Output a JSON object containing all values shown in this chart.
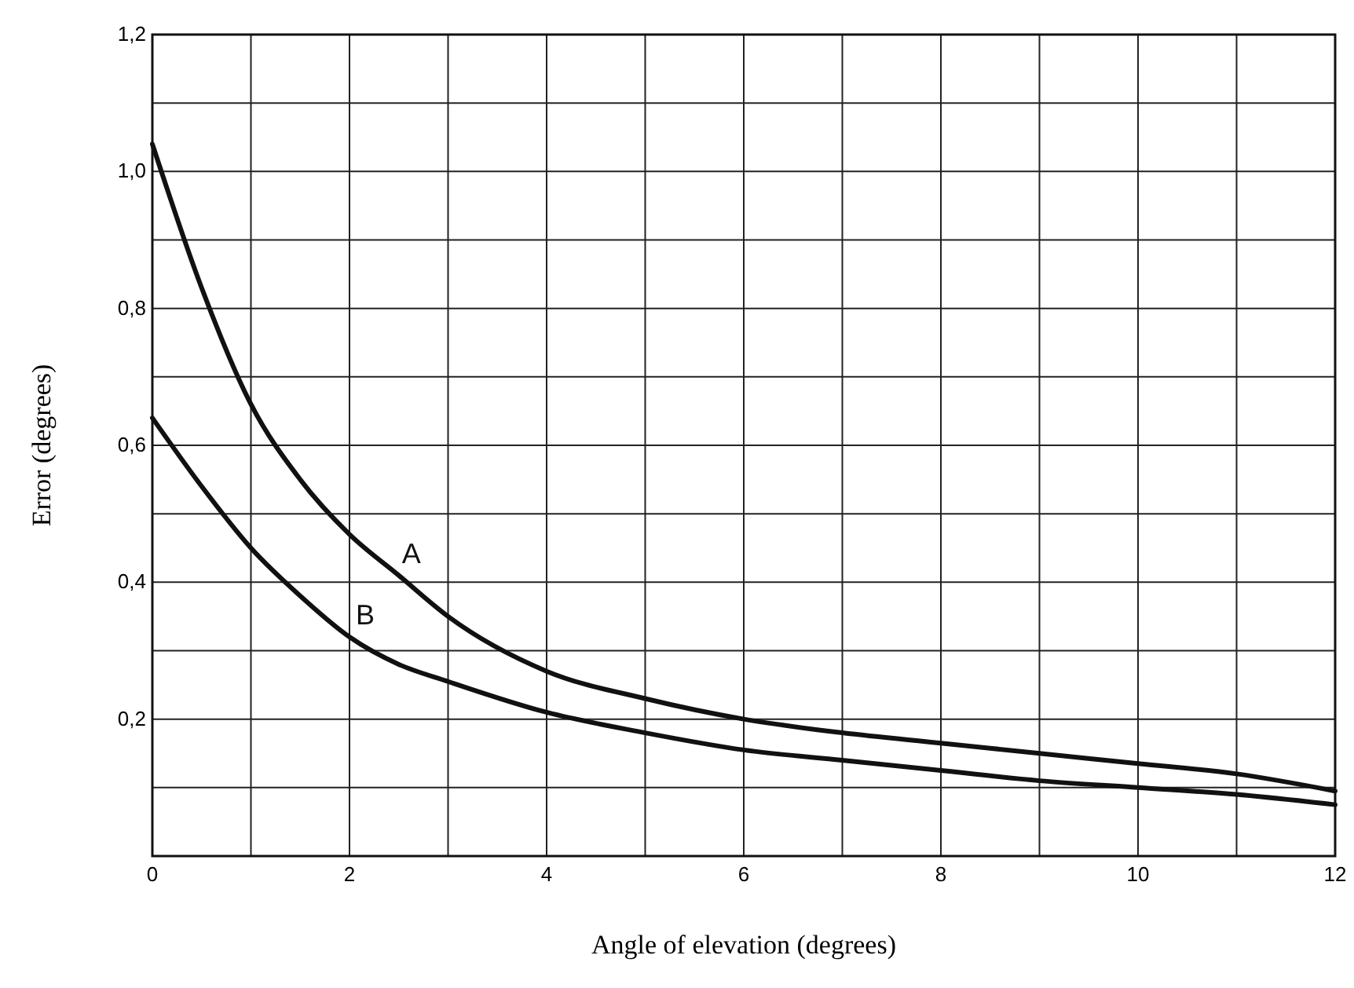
{
  "chart_data": {
    "type": "line",
    "xlabel": "Angle of elevation (degrees)",
    "ylabel": "Error (degrees)",
    "x": [
      0,
      0.5,
      1,
      1.5,
      2,
      2.5,
      3,
      4,
      5,
      6,
      7,
      8,
      9,
      10,
      11,
      12
    ],
    "series": [
      {
        "name": "A",
        "color": "#111111",
        "values": [
          1.04,
          0.83,
          0.66,
          0.55,
          0.47,
          0.41,
          0.35,
          0.27,
          0.23,
          0.2,
          0.18,
          0.165,
          0.15,
          0.135,
          0.12,
          0.095
        ]
      },
      {
        "name": "B",
        "color": "#111111",
        "values": [
          0.64,
          0.54,
          0.45,
          0.38,
          0.32,
          0.28,
          0.255,
          0.21,
          0.18,
          0.155,
          0.14,
          0.125,
          0.11,
          0.1,
          0.09,
          0.075
        ]
      }
    ],
    "xlim": [
      0,
      12
    ],
    "ylim": [
      0,
      1.2
    ],
    "xticks": [
      0,
      {
        "value": 1,
        "label": null
      },
      2,
      {
        "value": 3,
        "label": null
      },
      4,
      {
        "value": 5,
        "label": null
      },
      6,
      {
        "value": 7,
        "label": null
      },
      8,
      {
        "value": 9,
        "label": null
      },
      10,
      {
        "value": 11,
        "label": null
      },
      12
    ],
    "yticks": [
      {
        "value": 0,
        "label": null
      },
      {
        "value": 0.1,
        "label": null
      },
      {
        "value": 0.2,
        "label": "0,2"
      },
      {
        "value": 0.3,
        "label": null
      },
      {
        "value": 0.4,
        "label": "0,4"
      },
      {
        "value": 0.5,
        "label": null
      },
      {
        "value": 0.6,
        "label": "0,6"
      },
      {
        "value": 0.7,
        "label": null
      },
      {
        "value": 0.8,
        "label": "0,8"
      },
      {
        "value": 0.9,
        "label": null
      },
      {
        "value": 1,
        "label": "1,0"
      },
      {
        "value": 1.1,
        "label": null
      },
      {
        "value": 1.2,
        "label": "1,2"
      }
    ],
    "grid": true,
    "marker": "none",
    "line_style": "solid"
  }
}
